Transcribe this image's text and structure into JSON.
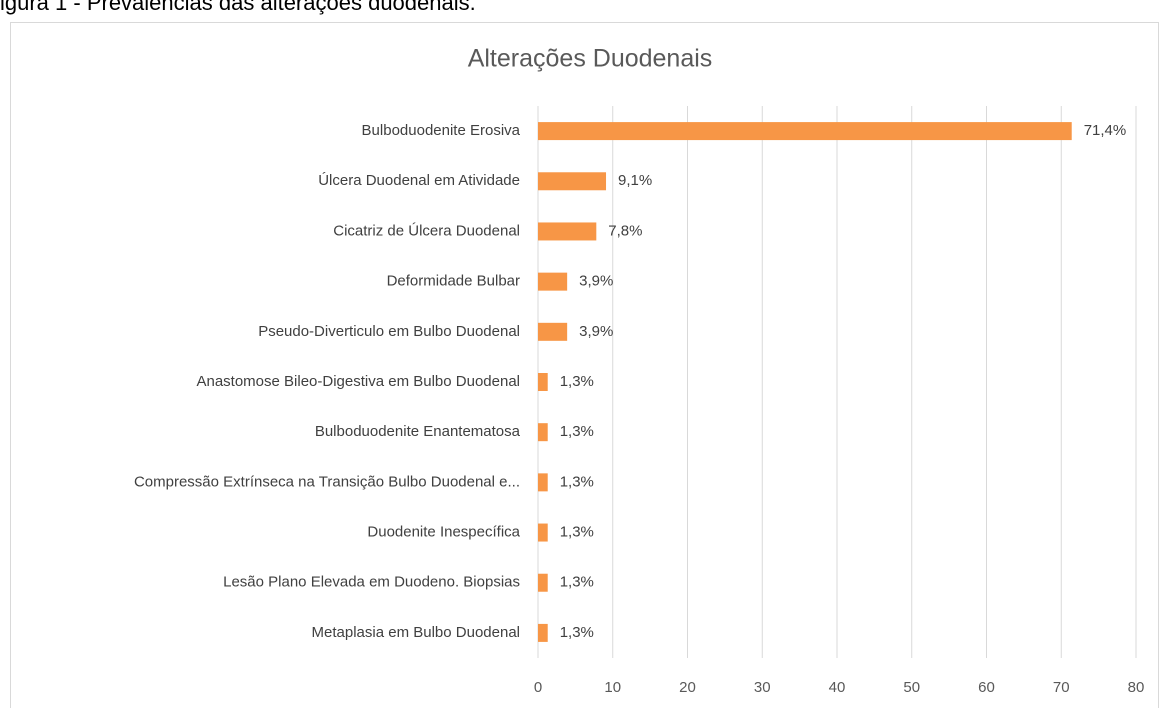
{
  "caption": "igura 1 - Prevalências das alterações duodenais.",
  "chart_data": {
    "type": "bar",
    "orientation": "horizontal",
    "title": "Alterações Duodenais",
    "categories": [
      "Bulboduodenite Erosiva",
      "Úlcera Duodenal em Atividade",
      "Cicatriz de Úlcera Duodenal",
      "Deformidade Bulbar",
      "Pseudo-Diverticulo em Bulbo Duodenal",
      "Anastomose Bileo-Digestiva em Bulbo Duodenal",
      "Bulboduodenite Enantematosa",
      "Compressão Extrínseca na Transição Bulbo Duodenal e...",
      "Duodenite Inespecífica",
      "Lesão Plano Elevada em Duodeno. Biopsias",
      "Metaplasia em Bulbo Duodenal"
    ],
    "values": [
      71.4,
      9.1,
      7.8,
      3.9,
      3.9,
      1.3,
      1.3,
      1.3,
      1.3,
      1.3,
      1.3
    ],
    "value_labels": [
      "71,4%",
      "9,1%",
      "7,8%",
      "3,9%",
      "3,9%",
      "1,3%",
      "1,3%",
      "1,3%",
      "1,3%",
      "1,3%",
      "1,3%"
    ],
    "color": "#f79646",
    "xlim": [
      0,
      80
    ],
    "xticks": [
      0,
      10,
      20,
      30,
      40,
      50,
      60,
      70,
      80
    ],
    "grid": true
  }
}
